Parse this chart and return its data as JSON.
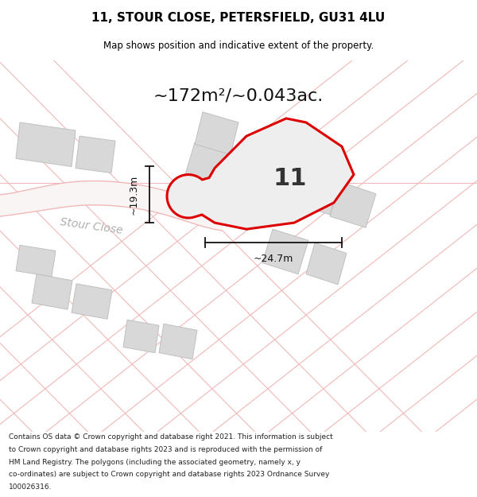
{
  "title": "11, STOUR CLOSE, PETERSFIELD, GU31 4LU",
  "subtitle": "Map shows position and indicative extent of the property.",
  "area_text": "~172m²/~0.043ac.",
  "dim_vertical": "~19.3m",
  "dim_horizontal": "~24.7m",
  "plot_number": "11",
  "street_label": "Stour Close",
  "footer_lines": [
    "Contains OS data © Crown copyright and database right 2021. This information is subject",
    "to Crown copyright and database rights 2023 and is reproduced with the permission of",
    "HM Land Registry. The polygons (including the associated geometry, namely x, y",
    "co-ordinates) are subject to Crown copyright and database rights 2023 Ordnance Survey",
    "100026316."
  ],
  "bg_color": "#faf5f5",
  "road_color": "#f0b8b8",
  "building_fill": "#d8d8d8",
  "building_edge": "#c0c0c0",
  "plot_edge": "#dd0000",
  "plot_fill": "#eeeeee",
  "dim_color": "#111111",
  "street_color": "#b0b0b0"
}
